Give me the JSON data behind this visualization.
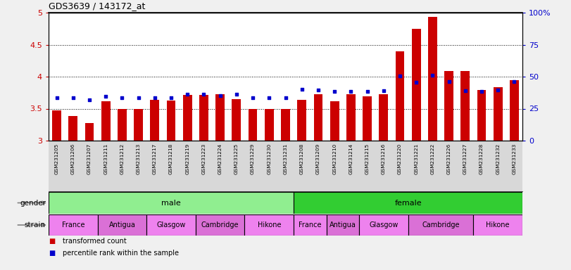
{
  "title": "GDS3639 / 143172_at",
  "samples": [
    "GSM231205",
    "GSM231206",
    "GSM231207",
    "GSM231211",
    "GSM231212",
    "GSM231213",
    "GSM231217",
    "GSM231218",
    "GSM231219",
    "GSM231223",
    "GSM231224",
    "GSM231225",
    "GSM231229",
    "GSM231230",
    "GSM231231",
    "GSM231208",
    "GSM231209",
    "GSM231210",
    "GSM231214",
    "GSM231215",
    "GSM231216",
    "GSM231220",
    "GSM231221",
    "GSM231222",
    "GSM231226",
    "GSM231227",
    "GSM231228",
    "GSM231232",
    "GSM231233"
  ],
  "red_values": [
    3.47,
    3.38,
    3.28,
    3.61,
    3.5,
    3.49,
    3.64,
    3.63,
    3.71,
    3.71,
    3.72,
    3.65,
    3.5,
    3.49,
    3.49,
    3.64,
    3.73,
    3.62,
    3.72,
    3.69,
    3.72,
    4.4,
    4.75,
    4.93,
    4.09,
    4.09,
    3.79,
    3.83,
    3.95
  ],
  "blue_values": [
    3.67,
    3.67,
    3.64,
    3.69,
    3.67,
    3.67,
    3.67,
    3.67,
    3.73,
    3.72,
    3.7,
    3.73,
    3.67,
    3.67,
    3.67,
    3.8,
    3.79,
    3.77,
    3.77,
    3.77,
    3.78,
    4.01,
    3.91,
    4.02,
    3.92,
    3.78,
    3.77,
    3.79,
    3.92
  ],
  "ymin": 3.0,
  "ymax": 5.0,
  "yticks_left": [
    3.0,
    3.5,
    4.0,
    4.5,
    5.0
  ],
  "yticks_left_labels": [
    "3",
    "3.5",
    "4",
    "4.5",
    "5"
  ],
  "yticks_right_labels": [
    "0",
    "25",
    "50",
    "75",
    "100%"
  ],
  "yticks_right_pos": [
    3.0,
    3.5,
    4.0,
    4.5,
    5.0
  ],
  "num_male": 15,
  "gender_groups": [
    {
      "label": "male",
      "start": 0,
      "end": 15,
      "color": "#90EE90"
    },
    {
      "label": "female",
      "start": 15,
      "end": 29,
      "color": "#32CD32"
    }
  ],
  "strain_defs": [
    {
      "label": "France",
      "start": 0,
      "end": 3,
      "color": "#EE82EE"
    },
    {
      "label": "Antigua",
      "start": 3,
      "end": 6,
      "color": "#DA70D6"
    },
    {
      "label": "Glasgow",
      "start": 6,
      "end": 9,
      "color": "#EE82EE"
    },
    {
      "label": "Cambridge",
      "start": 9,
      "end": 12,
      "color": "#DA70D6"
    },
    {
      "label": "Hikone",
      "start": 12,
      "end": 15,
      "color": "#EE82EE"
    },
    {
      "label": "France",
      "start": 15,
      "end": 17,
      "color": "#EE82EE"
    },
    {
      "label": "Antigua",
      "start": 17,
      "end": 19,
      "color": "#DA70D6"
    },
    {
      "label": "Glasgow",
      "start": 19,
      "end": 22,
      "color": "#EE82EE"
    },
    {
      "label": "Cambridge",
      "start": 22,
      "end": 26,
      "color": "#DA70D6"
    },
    {
      "label": "Hikone",
      "start": 26,
      "end": 29,
      "color": "#EE82EE"
    }
  ],
  "bar_color": "#CC0000",
  "dot_color": "#0000CC",
  "bg_color": "#F0F0F0",
  "plot_bg": "#FFFFFF",
  "left_axis_color": "#CC0000",
  "right_axis_color": "#0000CC",
  "xtick_bg": "#D8D8D8",
  "legend_items": [
    {
      "color": "#CC0000",
      "label": "transformed count"
    },
    {
      "color": "#0000CC",
      "label": "percentile rank within the sample"
    }
  ]
}
